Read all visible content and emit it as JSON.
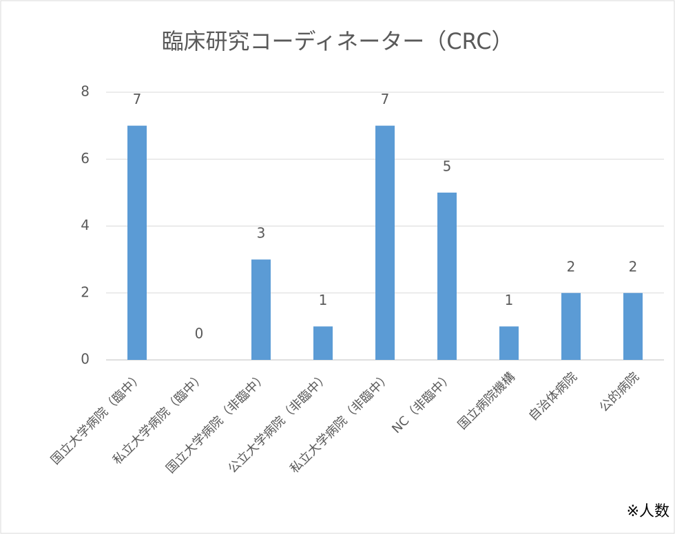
{
  "chart_data": {
    "type": "bar",
    "title": "臨床研究コーディネーター（CRC）",
    "categories": [
      "国立大学病院（臨中）",
      "私立大学病院（臨中）",
      "国立大学病院（非臨中）",
      "公立大学病院（非臨中）",
      "私立大学病院（非臨中）",
      "NC（非臨中）",
      "国立病院機構",
      "自治体病院",
      "公的病院"
    ],
    "values": [
      7,
      0,
      3,
      1,
      7,
      5,
      1,
      2,
      2
    ],
    "color": "#5b9bd5",
    "ylim": [
      0,
      8
    ],
    "yticks": [
      0,
      2,
      4,
      6,
      8
    ],
    "grid": true,
    "annotation": "※人数"
  }
}
